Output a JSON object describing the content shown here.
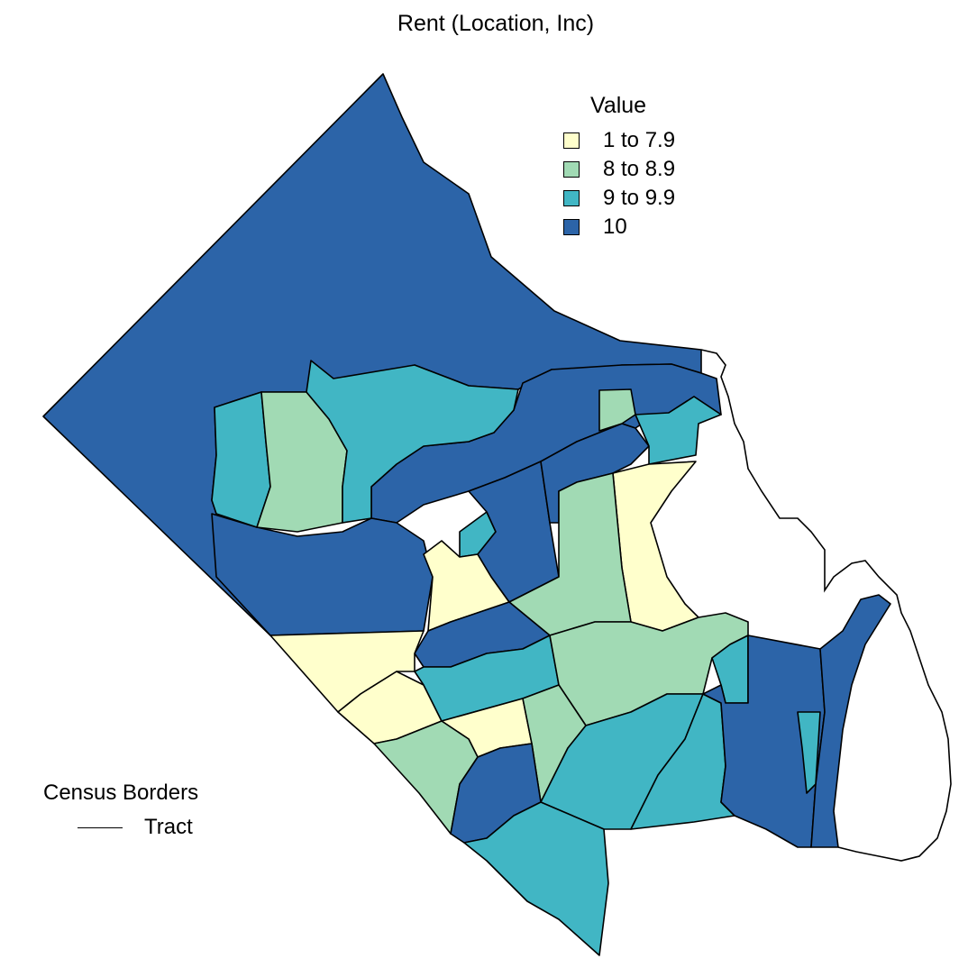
{
  "title": "Rent (Location, Inc)",
  "legend": {
    "title": "Value",
    "items": [
      {
        "label": "1 to 7.9",
        "color": "#ffffcc"
      },
      {
        "label": "8 to 8.9",
        "color": "#a1dab4"
      },
      {
        "label": "9 to 9.9",
        "color": "#41b6c4"
      },
      {
        "label": "10",
        "color": "#2c64a8"
      }
    ]
  },
  "borders_legend": {
    "title": "Census Borders",
    "line_label": "Tract"
  }
}
